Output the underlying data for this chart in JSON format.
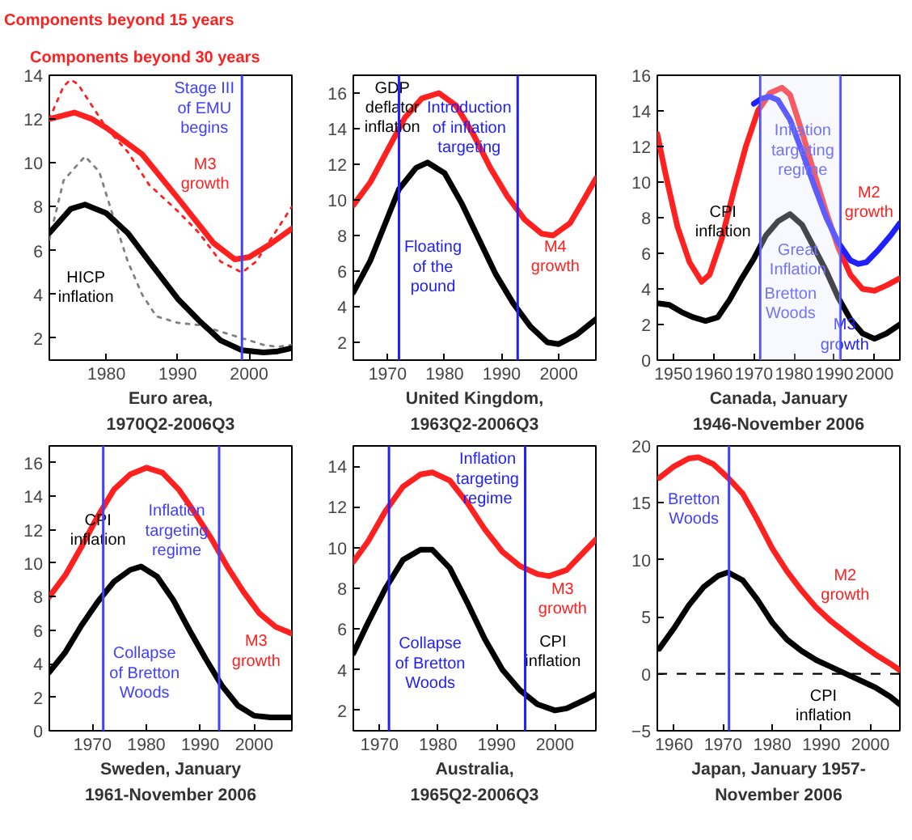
{
  "chart_data": [
    {
      "type": "line",
      "xlabel": "Euro area,\n1970Q2-2006Q3",
      "xlim": [
        1972,
        2006
      ],
      "xticks": [
        1980,
        1990,
        2000
      ],
      "ylim": [
        1,
        14
      ],
      "yticks": [
        2,
        4,
        6,
        8,
        10,
        12,
        14
      ],
      "series": [
        {
          "color": "#ff2020",
          "line_style": "dotted",
          "x": [
            1972,
            1974,
            1975,
            1976,
            1978,
            1980,
            1983,
            1986,
            1990,
            1993,
            1996,
            1999,
            2001,
            2003,
            2006
          ],
          "values": [
            12.0,
            13.5,
            13.8,
            13.6,
            12.6,
            11.6,
            10.5,
            9.0,
            7.8,
            6.8,
            5.5,
            5.0,
            5.5,
            6.5,
            8.0
          ]
        },
        {
          "color": "#808080",
          "line_style": "dotted",
          "x": [
            1972,
            1974,
            1977,
            1979,
            1981,
            1983,
            1985,
            1987,
            1990,
            1993,
            1996,
            1999,
            2002,
            2004,
            2006
          ],
          "values": [
            6.5,
            9.2,
            10.3,
            9.6,
            7.5,
            5.5,
            4.0,
            3.0,
            2.7,
            2.6,
            2.3,
            2.0,
            1.7,
            1.6,
            1.7
          ]
        },
        {
          "name": "M3\ngrowth",
          "color": "#ff2020",
          "line_style": "solid",
          "x": [
            1972,
            1975.5,
            1978,
            1980,
            1985,
            1990,
            1995,
            1998,
            2000,
            2003,
            2006
          ],
          "values": [
            12.0,
            12.3,
            12.0,
            11.6,
            10.4,
            8.4,
            6.35,
            5.6,
            5.7,
            6.3,
            7.0
          ]
        },
        {
          "name": "HICP\ninflation",
          "color": "#000000",
          "line_style": "solid",
          "x": [
            1972,
            1975,
            1977,
            1980,
            1983,
            1986,
            1990,
            1993,
            1996,
            1999,
            2002,
            2004,
            2006
          ],
          "values": [
            6.8,
            7.9,
            8.1,
            7.7,
            6.8,
            5.5,
            3.8,
            2.8,
            1.9,
            1.45,
            1.35,
            1.4,
            1.55
          ]
        }
      ],
      "ref_lines": [
        {
          "axis": "x",
          "value": 1999,
          "color": "#4040ff",
          "label": "Stage III\nof EMU\nbegins"
        }
      ],
      "annotations": [
        "Components beyond 15 years",
        "Components beyond 30 years"
      ]
    },
    {
      "type": "line",
      "xlabel": "United Kingdom,\n1963Q2-2006Q3",
      "xlim": [
        1964,
        2006.5
      ],
      "xticks": [
        1970,
        1980,
        1990,
        2000
      ],
      "ylim": [
        1,
        17
      ],
      "yticks": [
        2,
        4,
        6,
        8,
        10,
        12,
        14,
        16
      ],
      "series": [
        {
          "name": "M4\ngrowth",
          "color": "#ff2020",
          "line_style": "solid",
          "x": [
            1964,
            1967,
            1970,
            1973,
            1976,
            1979,
            1982,
            1985,
            1988,
            1991,
            1994,
            1997,
            1999,
            2002,
            2004,
            2006.5
          ],
          "values": [
            9.7,
            11.0,
            12.8,
            14.6,
            15.7,
            16.0,
            15.3,
            13.7,
            11.8,
            10.2,
            8.9,
            8.1,
            8.0,
            8.7,
            9.8,
            11.2
          ]
        },
        {
          "name": "GDP\ndeflator\ninflation",
          "color": "#000000",
          "line_style": "solid",
          "x": [
            1964,
            1967,
            1970,
            1972,
            1975,
            1977,
            1980,
            1983,
            1986,
            1989,
            1992,
            1995,
            1998,
            2000,
            2003,
            2006.5
          ],
          "values": [
            4.8,
            6.6,
            9.0,
            10.6,
            11.8,
            12.1,
            11.5,
            9.8,
            7.8,
            5.8,
            4.2,
            2.9,
            2.0,
            1.9,
            2.4,
            3.3
          ]
        }
      ],
      "ref_lines": [
        {
          "axis": "x",
          "value": 1972,
          "color": "#2020ff",
          "label": "Floating\nof the\npound"
        },
        {
          "axis": "x",
          "value": 1992.8,
          "color": "#2020ff",
          "label": "Introduction\nof inflation\ntargeting"
        }
      ]
    },
    {
      "type": "line",
      "xlabel": "Canada, January\n1946-November 2006",
      "xlim": [
        1946,
        2006.3
      ],
      "xticks": [
        1950,
        1960,
        1970,
        1980,
        1990,
        2000
      ],
      "ylim": [
        0,
        16
      ],
      "yticks": [
        0,
        2,
        4,
        6,
        8,
        10,
        12,
        14,
        16
      ],
      "series": [
        {
          "name": "M2\ngrowth",
          "color": "#ff2020",
          "line_style": "solid",
          "x": [
            1946,
            1948,
            1951,
            1954,
            1957,
            1959,
            1962,
            1965,
            1968,
            1971,
            1974,
            1977,
            1979,
            1982,
            1985,
            1988,
            1991,
            1994,
            1997,
            2000,
            2003,
            2006.3
          ],
          "values": [
            12.7,
            10.5,
            7.5,
            5.5,
            4.4,
            4.8,
            6.8,
            9.5,
            12.0,
            14.0,
            15.0,
            15.3,
            14.9,
            12.8,
            10.5,
            8.3,
            6.3,
            4.8,
            4.0,
            3.9,
            4.2,
            4.6
          ]
        },
        {
          "name": "M3\ngrowth",
          "color": "#2020ff",
          "line_style": "solid",
          "x": [
            1970,
            1972,
            1974,
            1976,
            1979,
            1982,
            1985,
            1988,
            1991,
            1994,
            1996,
            1998,
            2001,
            2004,
            2006.3
          ],
          "values": [
            14.4,
            14.7,
            14.8,
            14.6,
            13.5,
            11.7,
            9.8,
            8.0,
            6.6,
            5.6,
            5.4,
            5.5,
            6.2,
            7.0,
            7.7
          ]
        },
        {
          "name": "CPI\ninflation",
          "color": "#000000",
          "line_style": "solid",
          "x": [
            1946,
            1949,
            1952,
            1955,
            1958,
            1961,
            1964,
            1967,
            1970,
            1973,
            1976,
            1979,
            1982,
            1985,
            1988,
            1991,
            1994,
            1997,
            2000,
            2003,
            2006.3
          ],
          "values": [
            3.2,
            3.1,
            2.7,
            2.4,
            2.2,
            2.4,
            3.4,
            4.6,
            5.7,
            7.0,
            7.8,
            8.2,
            7.6,
            6.3,
            5.0,
            3.5,
            2.3,
            1.5,
            1.2,
            1.5,
            2.0
          ]
        }
      ],
      "ref_lines": [
        {
          "axis": "x",
          "value": 1971.6,
          "color": "#4040ff",
          "label": "Bretton\nWoods"
        },
        {
          "axis": "x",
          "value": 1991.5,
          "color": "#4040ff",
          "label": "Inflation\ntargeting\nregime"
        }
      ],
      "bands": [
        {
          "axis": "x",
          "from": 1971.6,
          "to": 1991.5,
          "color": "#e8e8ff",
          "label": "Great\nInflation"
        }
      ]
    },
    {
      "type": "line",
      "xlabel": "Sweden, January\n1961-November 2006",
      "xlim": [
        1962,
        2007
      ],
      "xticks": [
        1970,
        1980,
        1990,
        2000
      ],
      "ylim": [
        0,
        17
      ],
      "yticks": [
        0,
        2,
        4,
        6,
        8,
        10,
        12,
        14,
        16
      ],
      "series": [
        {
          "name": "M3\ngrowth",
          "color": "#ff2020",
          "line_style": "solid",
          "x": [
            1962,
            1965,
            1968,
            1971,
            1974,
            1977,
            1980,
            1983,
            1986,
            1989,
            1992,
            1995,
            1998,
            2001,
            2004,
            2007
          ],
          "values": [
            8.0,
            9.3,
            11.0,
            12.8,
            14.4,
            15.3,
            15.7,
            15.4,
            14.4,
            13.0,
            11.5,
            9.8,
            8.3,
            7.0,
            6.2,
            5.8
          ]
        },
        {
          "name": "CPI\ninflation",
          "color": "#000000",
          "line_style": "solid",
          "x": [
            1962,
            1965,
            1968,
            1971,
            1974,
            1977,
            1979,
            1982,
            1985,
            1988,
            1991,
            1994,
            1997,
            2000,
            2003,
            2007
          ],
          "values": [
            3.5,
            4.7,
            6.3,
            7.7,
            8.9,
            9.6,
            9.8,
            9.2,
            7.8,
            6.0,
            4.3,
            2.7,
            1.5,
            0.9,
            0.8,
            0.8
          ]
        }
      ],
      "ref_lines": [
        {
          "axis": "x",
          "value": 1972,
          "color": "#4040ff",
          "label": "Collapse\nof Bretton\nWoods"
        },
        {
          "axis": "x",
          "value": 1993.5,
          "color": "#4040ff",
          "label": "Inflation\ntargeting\nregime"
        }
      ]
    },
    {
      "type": "line",
      "xlabel": "Australia,\n1965Q2-2006Q3",
      "xlim": [
        1965.5,
        2007
      ],
      "xticks": [
        1970,
        1980,
        1990,
        2000
      ],
      "ylim": [
        1,
        15
      ],
      "yticks": [
        2,
        4,
        6,
        8,
        10,
        12,
        14
      ],
      "series": [
        {
          "name": "M3\ngrowth",
          "color": "#ff2020",
          "line_style": "solid",
          "x": [
            1965.5,
            1968,
            1971,
            1974,
            1977,
            1979,
            1982,
            1985,
            1988,
            1991,
            1994,
            1997,
            1999,
            2002,
            2005,
            2007
          ],
          "values": [
            9.3,
            10.3,
            11.8,
            13.0,
            13.6,
            13.7,
            13.3,
            12.2,
            10.9,
            9.8,
            9.1,
            8.7,
            8.6,
            8.9,
            9.8,
            10.4
          ]
        },
        {
          "name": "CPI\ninflation",
          "color": "#000000",
          "line_style": "solid",
          "x": [
            1965.5,
            1968,
            1971,
            1974,
            1977,
            1979,
            1982,
            1985,
            1988,
            1991,
            1994,
            1997,
            2000,
            2002,
            2005,
            2007
          ],
          "values": [
            4.8,
            6.3,
            8.0,
            9.4,
            9.9,
            9.9,
            9.0,
            7.3,
            5.5,
            4.0,
            3.0,
            2.3,
            2.0,
            2.1,
            2.5,
            2.8
          ]
        }
      ],
      "ref_lines": [
        {
          "axis": "x",
          "value": 1971.6,
          "color": "#2020ff",
          "label": "Collapse\nof Bretton\nWoods"
        },
        {
          "axis": "x",
          "value": 1994.9,
          "color": "#2020ff",
          "label": "Inflation\ntargeting\nregime"
        }
      ]
    },
    {
      "type": "line",
      "xlabel": "Japan, January 1957-\nNovember 2006",
      "xlim": [
        1956.6,
        2006
      ],
      "xticks": [
        1960,
        1970,
        1980,
        1990,
        2000
      ],
      "ylim": [
        -5,
        20
      ],
      "yticks": [
        -5,
        0,
        5,
        10,
        15,
        20
      ],
      "series": [
        {
          "name": "M2\ngrowth",
          "color": "#ff2020",
          "line_style": "solid",
          "x": [
            1957,
            1960,
            1963,
            1965,
            1968,
            1971,
            1974,
            1977,
            1980,
            1983,
            1986,
            1989,
            1992,
            1995,
            1998,
            2001,
            2004,
            2006
          ],
          "values": [
            17.2,
            18.2,
            18.9,
            19.0,
            18.4,
            17.2,
            15.8,
            13.5,
            11.0,
            9.0,
            7.3,
            5.8,
            4.6,
            3.6,
            2.6,
            1.7,
            0.9,
            0.3
          ]
        },
        {
          "name": "CPI\ninflation",
          "color": "#000000",
          "line_style": "solid",
          "x": [
            1957,
            1960,
            1963,
            1966,
            1969,
            1971,
            1974,
            1977,
            1980,
            1983,
            1986,
            1989,
            1992,
            1995,
            1998,
            2001,
            2004,
            2006
          ],
          "values": [
            2.2,
            4.0,
            6.0,
            7.6,
            8.6,
            8.9,
            8.2,
            6.5,
            4.5,
            3.0,
            2.0,
            1.2,
            0.6,
            0.0,
            -0.6,
            -1.2,
            -2.0,
            -2.7
          ]
        }
      ],
      "ref_lines": [
        {
          "axis": "x",
          "value": 1971.2,
          "color": "#4040ff",
          "label": "Bretton\nWoods"
        },
        {
          "axis": "y",
          "value": 0,
          "color": "#000000",
          "line_style": "dashed"
        }
      ]
    }
  ]
}
